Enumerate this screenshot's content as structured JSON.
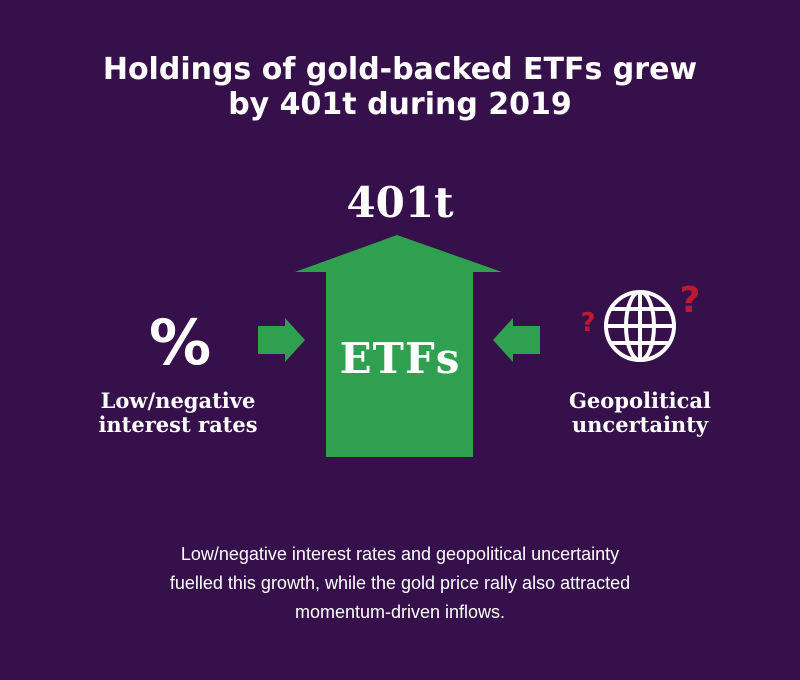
{
  "title": {
    "line1": "Holdings of gold-backed ETFs grew",
    "line2": "by 401t during 2019"
  },
  "growth_value": "401t",
  "center_label": "ETFs",
  "left_factor": {
    "icon": "percent-icon",
    "symbol": "%",
    "line1": "Low/negative",
    "line2": "interest rates"
  },
  "right_factor": {
    "icon": "globe-icon",
    "line1": "Geopolitical",
    "line2": "uncertainty"
  },
  "caption": {
    "line1": "Low/negative interest rates and geopolitical uncertainty",
    "line2": "fuelled this growth, while the gold price rally also attracted",
    "line3": "momentum-driven inflows."
  },
  "colors": {
    "background": "#36104a",
    "arrow_green": "#2ea04f",
    "question_red": "#c0182e",
    "text": "#ffffff"
  }
}
